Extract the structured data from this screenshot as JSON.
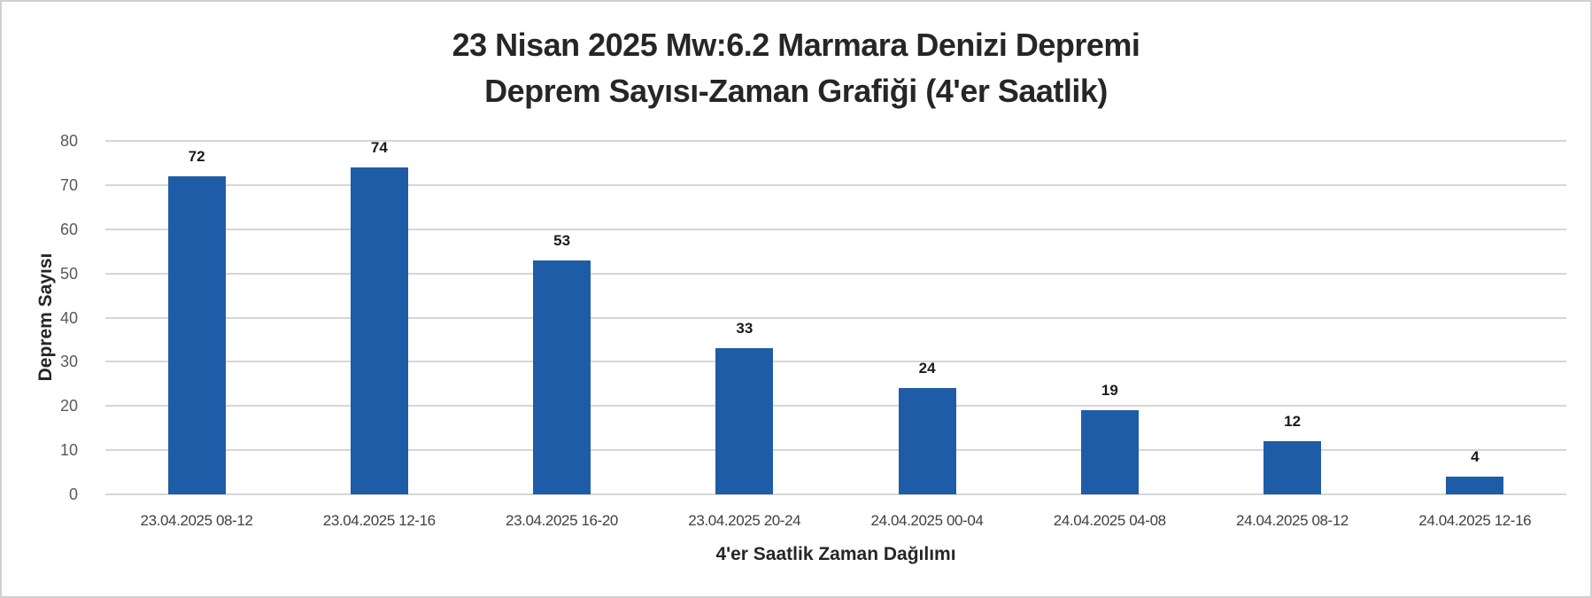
{
  "chart_data": {
    "type": "bar",
    "title": "23 Nisan 2025 Mw:6.2 Marmara Denizi Depremi",
    "subtitle": "Deprem Sayısı-Zaman Grafiği (4'er Saatlik)",
    "xlabel": "4'er Saatlik Zaman Dağılımı",
    "ylabel": "Deprem Sayısı",
    "categories": [
      "23.04.2025 08-12",
      "23.04.2025 12-16",
      "23.04.2025 16-20",
      "23.04.2025 20-24",
      "24.04.2025 00-04",
      "24.04.2025 04-08",
      "24.04.2025 08-12",
      "24.04.2025 12-16"
    ],
    "values": [
      72,
      74,
      53,
      33,
      24,
      19,
      12,
      4
    ],
    "data_labels": [
      "72",
      "74",
      "53",
      "33",
      "24",
      "19",
      "12",
      "4"
    ],
    "ylim": [
      0,
      80
    ],
    "yticks": [
      0,
      10,
      20,
      30,
      40,
      50,
      60,
      70,
      80
    ],
    "ytick_labels": [
      "0",
      "10",
      "20",
      "30",
      "40",
      "50",
      "60",
      "70",
      "80"
    ],
    "grid": true,
    "legend": null,
    "bar_color": "#1f5ca8"
  }
}
